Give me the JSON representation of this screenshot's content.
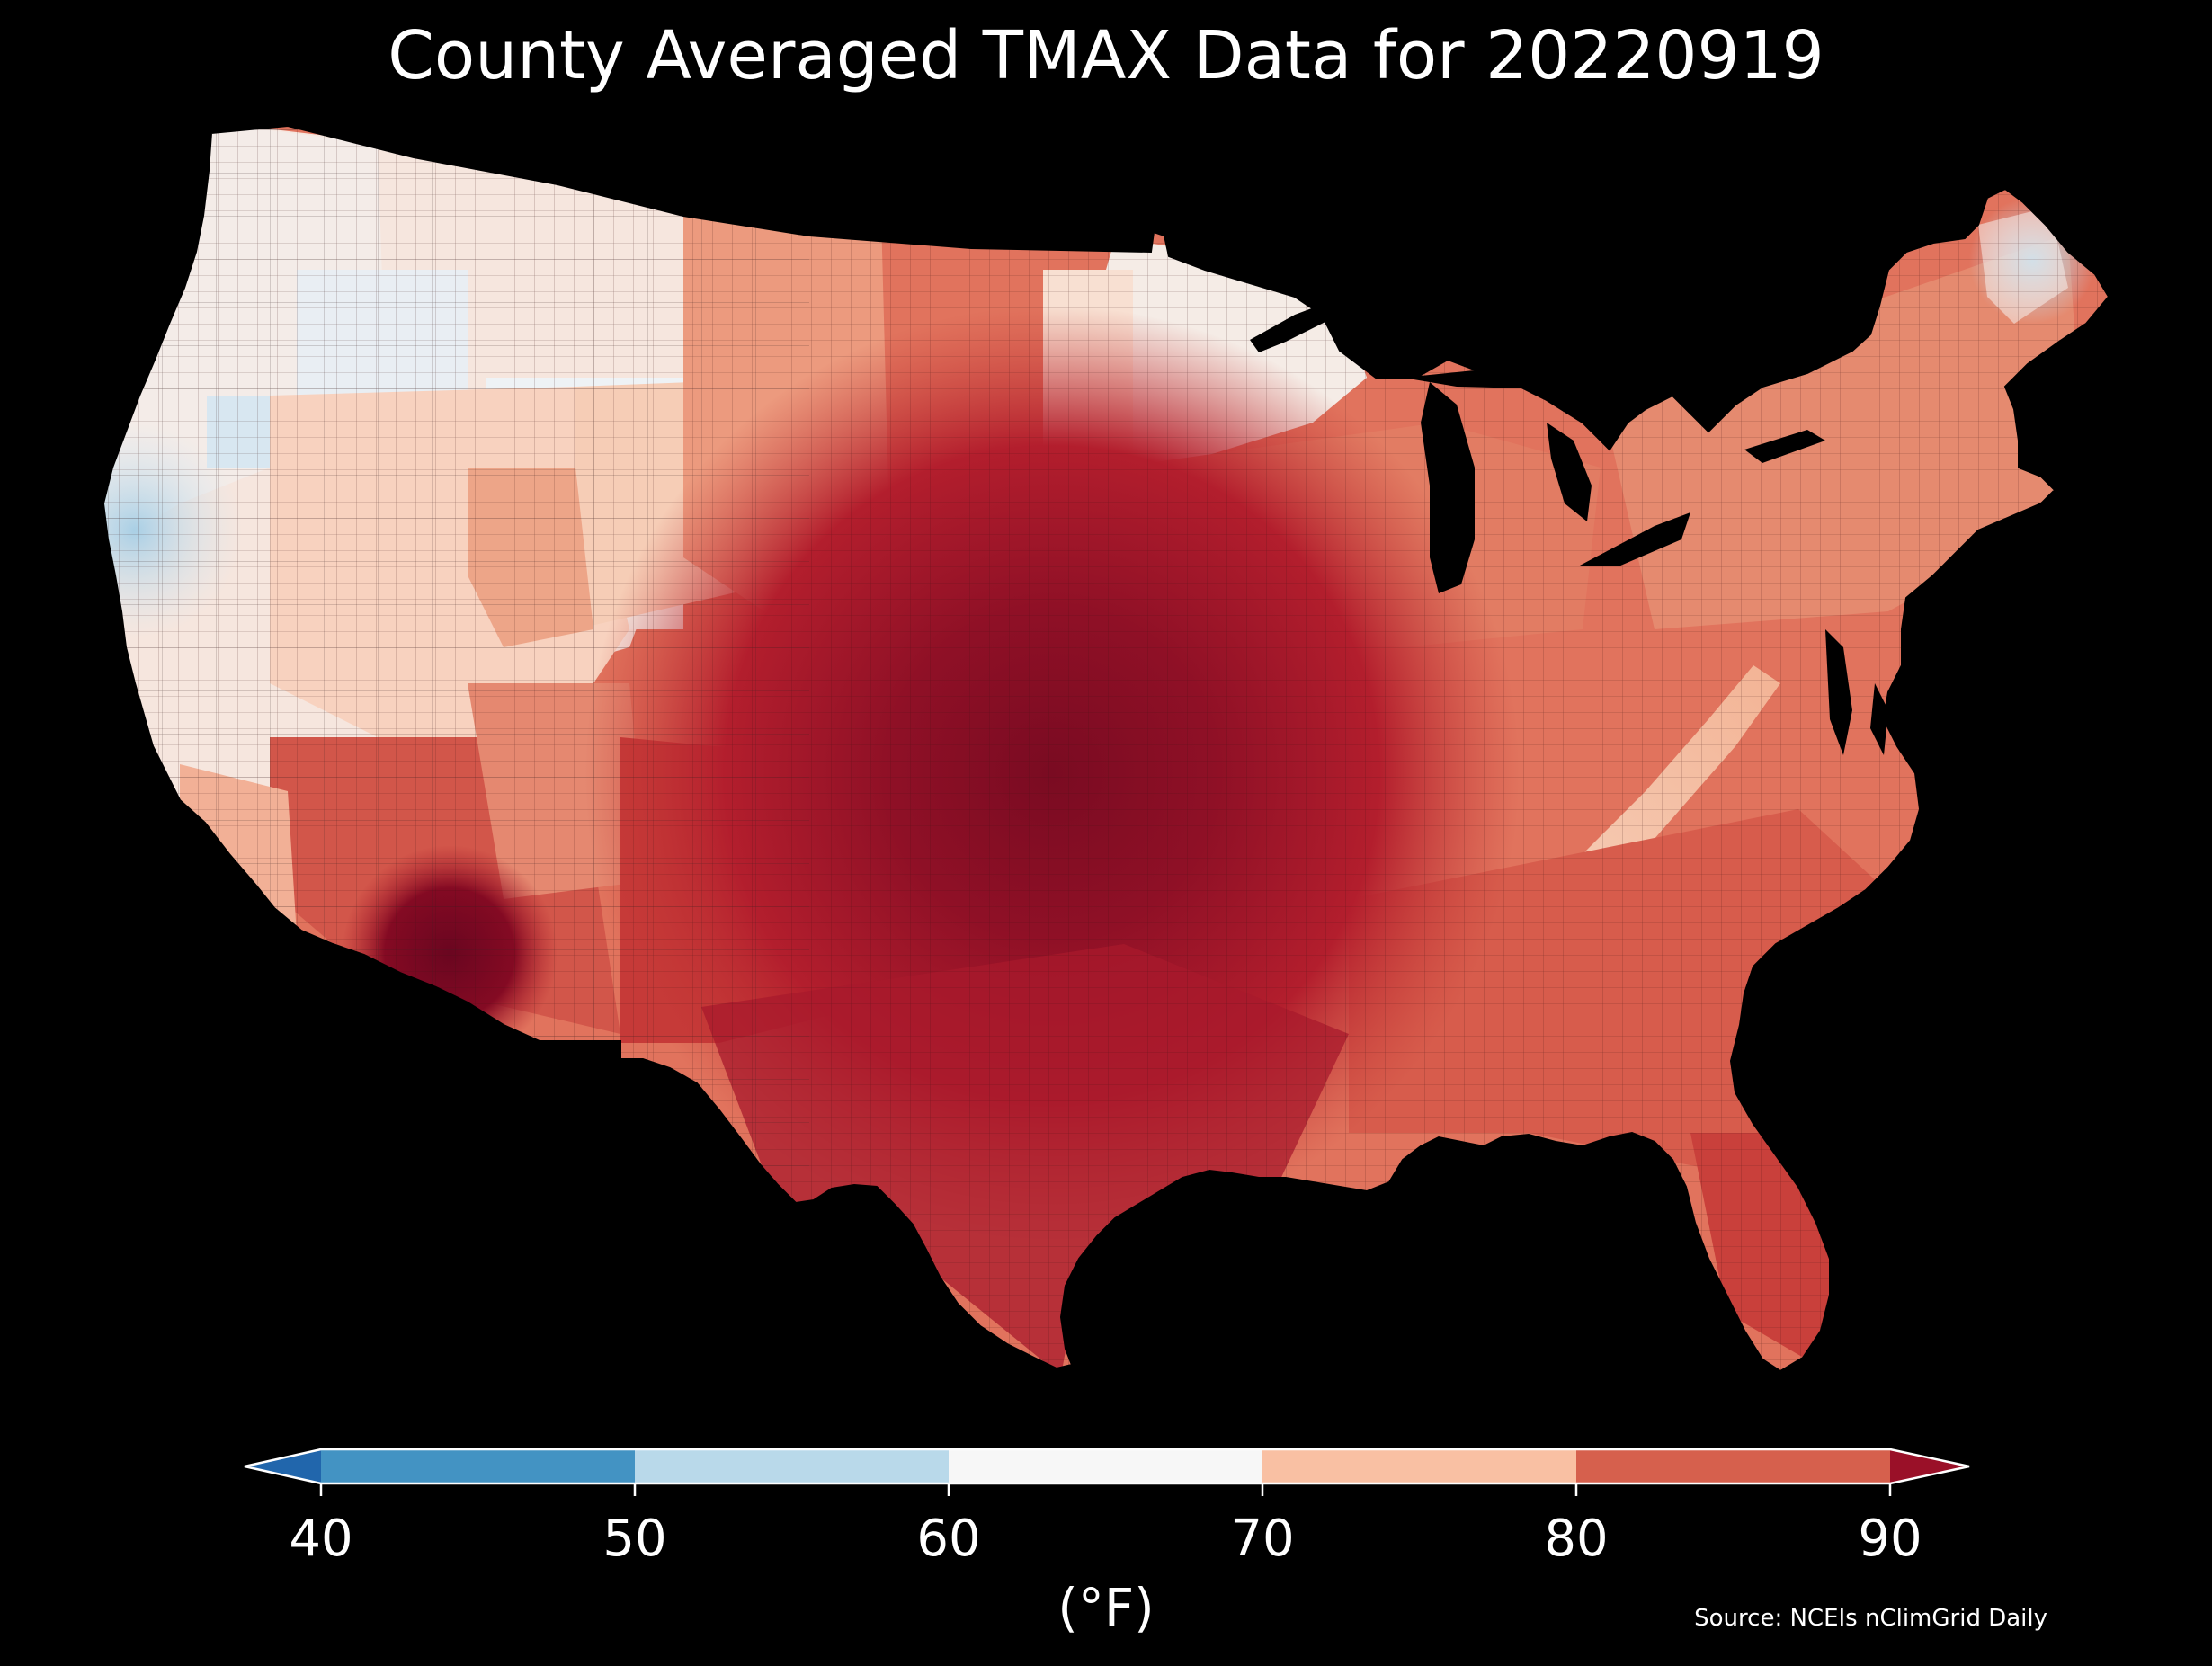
{
  "title": "County Averaged TMAX Data for 20220919",
  "source": "Source: NCEIs nClimGrid Daily",
  "colorbar": {
    "unit": "(°F)",
    "ticks": [
      "40",
      "50",
      "60",
      "70",
      "80",
      "90"
    ],
    "bins": [
      {
        "range": [
          40,
          50
        ],
        "color": "#4393c3"
      },
      {
        "range": [
          50,
          60
        ],
        "color": "#b9d9ea"
      },
      {
        "range": [
          60,
          70
        ],
        "color": "#f7f7f7"
      },
      {
        "range": [
          70,
          80
        ],
        "color": "#f9c0a3"
      },
      {
        "range": [
          80,
          90
        ],
        "color": "#d6604d"
      }
    ],
    "under_color": "#2166ac",
    "over_color": "#9a1028",
    "extend": "both"
  },
  "map": {
    "variable": "TMAX",
    "date": "20220919",
    "region": "Contiguous United States",
    "level": "County",
    "background": "#000000",
    "border_color": "#000000"
  }
}
